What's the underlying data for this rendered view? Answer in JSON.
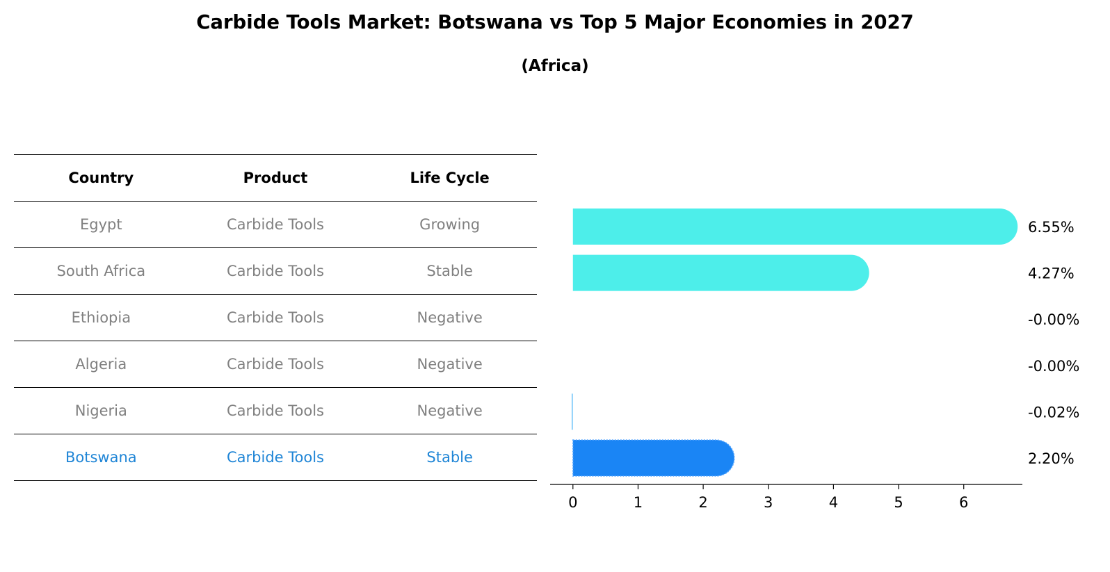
{
  "header": {
    "title": "Carbide Tools Market: Botswana vs Top 5 Major Economies in 2027",
    "subtitle": "(Africa)"
  },
  "table": {
    "columns": [
      "Country",
      "Product",
      "Life Cycle"
    ],
    "rows": [
      {
        "country": "Egypt",
        "product": "Carbide Tools",
        "life_cycle": "Growing"
      },
      {
        "country": "South Africa",
        "product": "Carbide Tools",
        "life_cycle": "Stable"
      },
      {
        "country": "Ethiopia",
        "product": "Carbide Tools",
        "life_cycle": "Negative"
      },
      {
        "country": "Algeria",
        "product": "Carbide Tools",
        "life_cycle": "Negative"
      },
      {
        "country": "Nigeria",
        "product": "Carbide Tools",
        "life_cycle": "Negative"
      },
      {
        "country": "Botswana",
        "product": "Carbide Tools",
        "life_cycle": "Stable"
      }
    ],
    "highlight_country": "Botswana",
    "text_color": "#808080",
    "highlight_color": "#1f85d6"
  },
  "chart_data": {
    "type": "bar",
    "orientation": "horizontal",
    "categories": [
      "Egypt",
      "South Africa",
      "Ethiopia",
      "Algeria",
      "Nigeria",
      "Botswana"
    ],
    "values": [
      6.55,
      4.27,
      -0.0,
      -0.0,
      -0.02,
      2.2
    ],
    "value_labels": [
      "6.55%",
      "4.27%",
      "-0.00%",
      "-0.00%",
      "-0.02%",
      "2.20%"
    ],
    "x_ticks": [
      0,
      1,
      2,
      3,
      4,
      5,
      6
    ],
    "xlim": [
      -0.35,
      6.9
    ],
    "grid": false,
    "colors": {
      "default": "#4deeea",
      "negative": "#87cefa",
      "highlight": "#1a85f5"
    }
  }
}
